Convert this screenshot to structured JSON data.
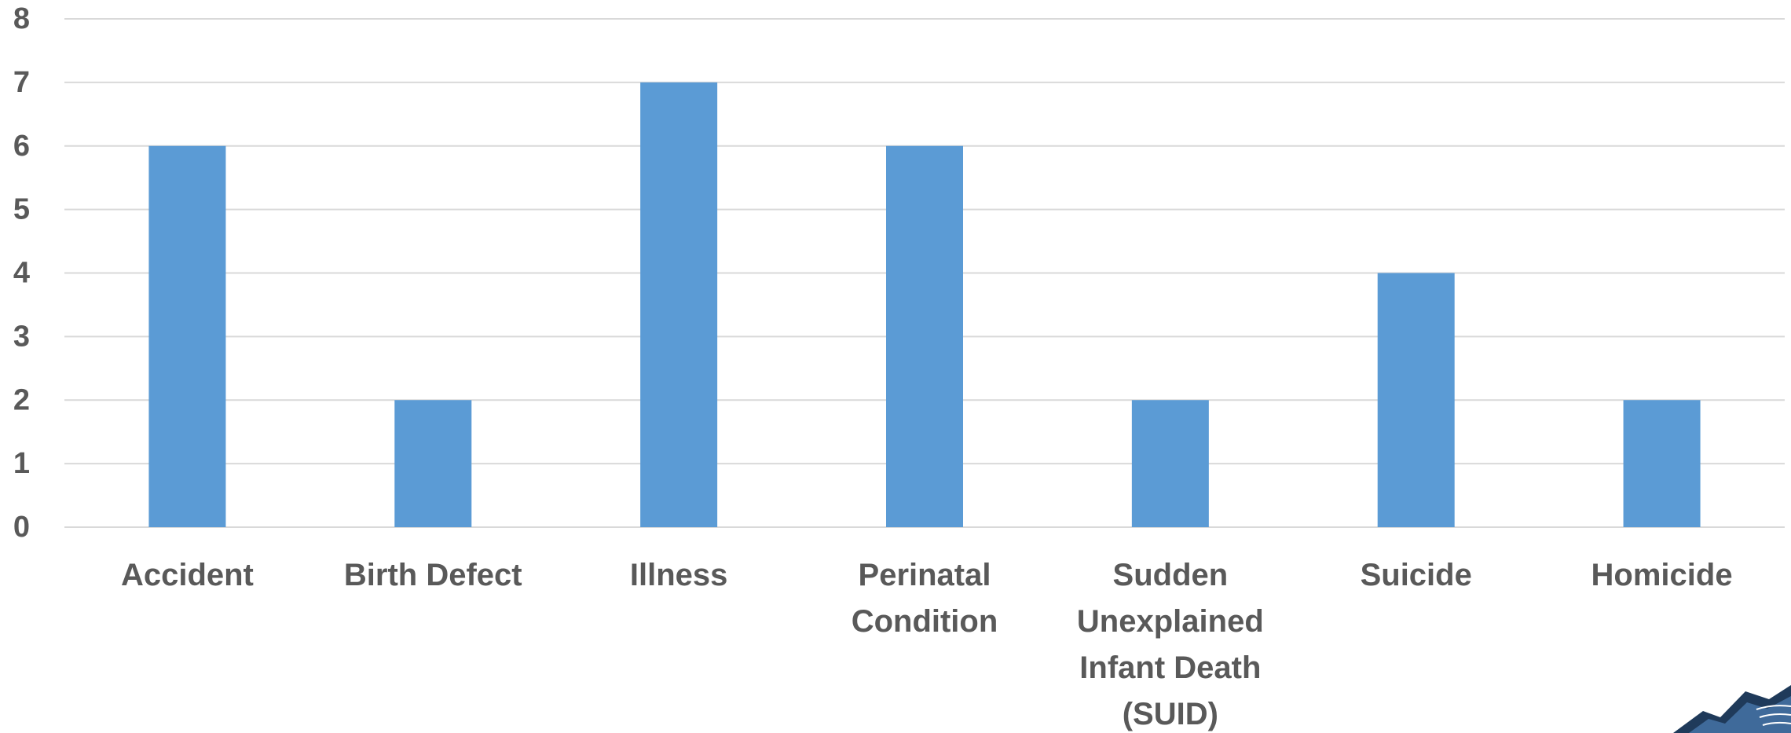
{
  "chart_data": {
    "type": "bar",
    "title": "",
    "xlabel": "",
    "ylabel": "",
    "categories": [
      "Accident",
      "Birth Defect",
      "Illness",
      "Perinatal Condition",
      "Sudden Unexplained Infant Death (SUID)",
      "Suicide",
      "Homicide"
    ],
    "category_lines": [
      [
        "Accident"
      ],
      [
        "Birth Defect"
      ],
      [
        "Illness"
      ],
      [
        "Perinatal",
        "Condition"
      ],
      [
        "Sudden",
        "Unexplained",
        "Infant Death",
        "(SUID)"
      ],
      [
        "Suicide"
      ],
      [
        "Homicide"
      ]
    ],
    "values": [
      6,
      2,
      7,
      6,
      2,
      4,
      2
    ],
    "ylim": [
      0,
      8
    ],
    "yticks": [
      "0",
      "1",
      "2",
      "3",
      "4",
      "5",
      "6",
      "7",
      "8"
    ],
    "grid": true,
    "legend": "none",
    "colors": {
      "bar": "#5b9bd5",
      "grid": "#d9d9d9",
      "text": "#595959",
      "logo_dark": "#1f3a5a",
      "logo_light": "#3f6a9a"
    }
  }
}
